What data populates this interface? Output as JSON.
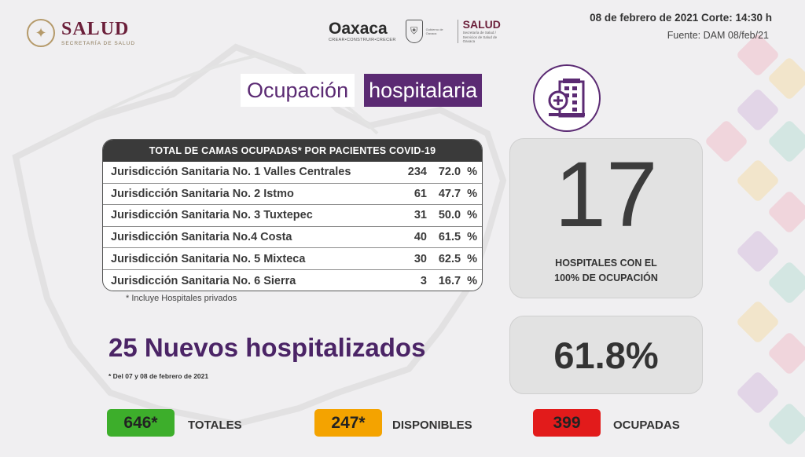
{
  "header": {
    "salud_logo": {
      "word": "SALUD",
      "sub": "SECRETARÍA DE SALUD"
    },
    "oaxaca_logo": {
      "word": "Oaxaca",
      "sub": "CREAR•CONSTRUIR•CRECER",
      "gob_sub": "Gobierno de Oaxaca"
    },
    "salud_small": {
      "word": "SALUD",
      "sub": "Secretaría de Salud / Servicios de Salud de Oaxaca"
    },
    "date_line": "08 de febrero de  2021 Corte: 14:30 h",
    "fuente_line": "Fuente:  DAM 08/feb/21"
  },
  "title": {
    "part1": "Ocupación",
    "part2": "hospitalaria"
  },
  "table": {
    "header": "TOTAL DE CAMAS OCUPADAS* POR PACIENTES COVID-19",
    "rows": [
      {
        "name": "Jurisdicción Sanitaria No. 1 Valles Centrales",
        "count": "234",
        "pct": "72.0  %"
      },
      {
        "name": "Jurisdicción Sanitaria No. 2 Istmo",
        "count": "61",
        "pct": "47.7  %"
      },
      {
        "name": "Jurisdicción Sanitaria No. 3 Tuxtepec",
        "count": "31",
        "pct": "50.0  %"
      },
      {
        "name": "Jurisdicción Sanitaria No.4 Costa",
        "count": "40",
        "pct": "61.5  %"
      },
      {
        "name": "Jurisdicción Sanitaria No. 5 Mixteca",
        "count": "30",
        "pct": "62.5  %"
      },
      {
        "name": "Jurisdicción Sanitaria No. 6 Sierra",
        "count": "3",
        "pct": "16.7  %"
      }
    ],
    "footnote": "* Incluye Hospitales privados"
  },
  "hospitals_full": {
    "value": "17",
    "label_line1": "HOSPITALES CON EL",
    "label_line2": "100% DE OCUPACIÓN"
  },
  "occupancy_pct": "61.8%",
  "nuevos": {
    "text": "25 Nuevos hospitalizados",
    "footnote": "* Del 07 y 08 de febrero de 2021"
  },
  "beds": {
    "totales": {
      "value": "646*",
      "label": "TOTALES",
      "color": "#3dae2b"
    },
    "disponibles": {
      "value": "247*",
      "label": "DISPONIBLES",
      "color": "#f4a300"
    },
    "ocupadas": {
      "value": "399",
      "label": "OCUPADAS",
      "color": "#e21b1b"
    }
  },
  "colors": {
    "purple": "#5b2a73",
    "dark": "#3a3a3a"
  }
}
